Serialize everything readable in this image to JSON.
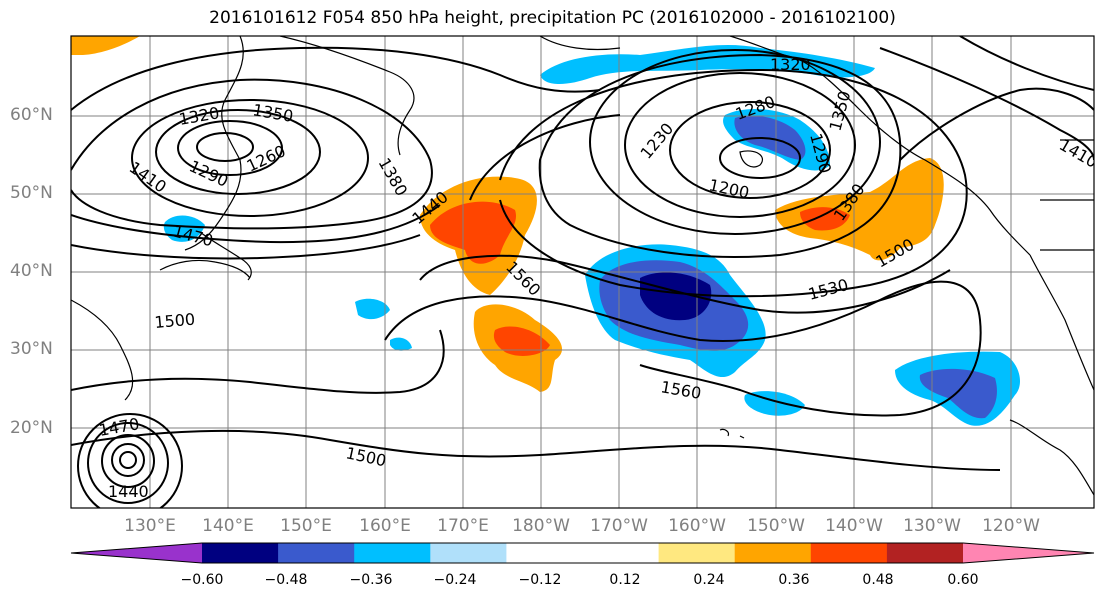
{
  "title": "2016101612 F054 850 hPa height, precipitation PC (2016102000 - 2016102100)",
  "lat_labels": [
    "60°N",
    "50°N",
    "40°N",
    "30°N",
    "20°N"
  ],
  "lon_labels": [
    "130°E",
    "140°E",
    "150°E",
    "160°E",
    "170°E",
    "180°W",
    "170°W",
    "160°W",
    "150°W",
    "140°W",
    "130°W",
    "120°W"
  ],
  "contour_labels": [
    "1320",
    "1350",
    "1290",
    "1260",
    "1410",
    "1380",
    "1470",
    "1440",
    "1500",
    "1560",
    "1230",
    "1200",
    "1280",
    "1290",
    "1350",
    "1320",
    "1380",
    "1530",
    "1560",
    "1500",
    "1470",
    "1440",
    "1500",
    "1410"
  ],
  "colorbar": {
    "colors": [
      "#9932cc",
      "#000080",
      "#3a5acd",
      "#00bfff",
      "#b0e0fa",
      "#ffffff",
      "#ffffff",
      "#ffe880",
      "#ffa500",
      "#ff4500",
      "#b22222",
      "#ff85b2"
    ],
    "ticks": [
      "−0.60",
      "−0.48",
      "−0.36",
      "−0.24",
      "−0.12",
      "0.12",
      "0.24",
      "0.36",
      "0.48",
      "0.60"
    ]
  }
}
